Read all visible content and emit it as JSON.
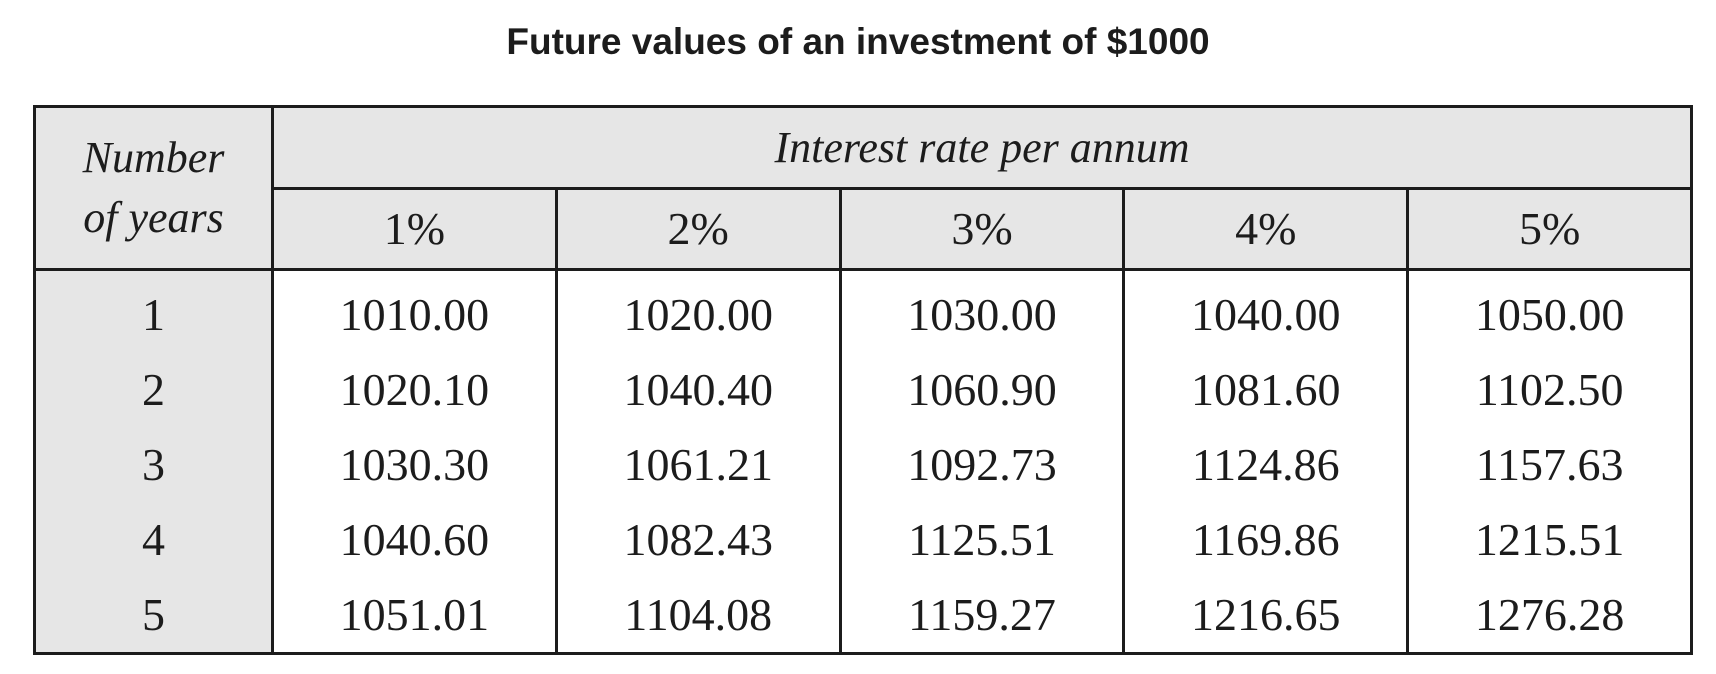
{
  "chart_data": {
    "type": "table",
    "title": "Future values of an investment of $1000",
    "row_header": [
      "Number",
      "of years"
    ],
    "column_group_header": "Interest rate per annum",
    "columns": [
      "1%",
      "2%",
      "3%",
      "4%",
      "5%"
    ],
    "rows": [
      {
        "years": "1",
        "values": [
          "1010.00",
          "1020.00",
          "1030.00",
          "1040.00",
          "1050.00"
        ]
      },
      {
        "years": "2",
        "values": [
          "1020.10",
          "1040.40",
          "1060.90",
          "1081.60",
          "1102.50"
        ]
      },
      {
        "years": "3",
        "values": [
          "1030.30",
          "1061.21",
          "1092.73",
          "1124.86",
          "1157.63"
        ]
      },
      {
        "years": "4",
        "values": [
          "1040.60",
          "1082.43",
          "1125.51",
          "1169.86",
          "1215.51"
        ]
      },
      {
        "years": "5",
        "values": [
          "1051.01",
          "1104.08",
          "1159.27",
          "1216.65",
          "1276.28"
        ]
      }
    ],
    "colors": {
      "header_fill": "#e6e6e6",
      "border": "#1c1c1c",
      "text": "#1c1c1c"
    }
  }
}
